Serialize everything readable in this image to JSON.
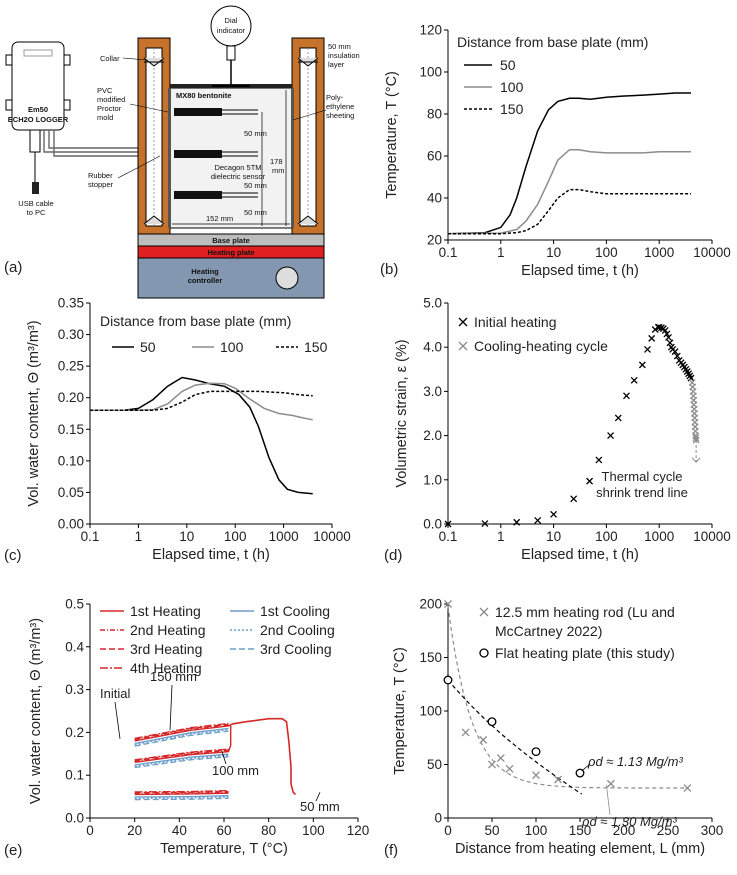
{
  "apparatus": {
    "panel_label": "(a)",
    "logger_title": "Em50",
    "logger_subtitle": "ECH2O LOGGER",
    "usb_label_1": "USB cable",
    "usb_label_2": "to PC",
    "collar": "Collar",
    "mold_1": "PVC",
    "mold_2": "modified",
    "mold_3": "Proctor",
    "mold_4": "mold",
    "stopper_1": "Rubber",
    "stopper_2": "stopper",
    "dial_1": "Dial",
    "dial_2": "indicator",
    "insul_1": "50 mm",
    "insul_2": "insulation",
    "insul_3": "layer",
    "bentonite": "MX80 bentonite",
    "sheet_1": "Poly-",
    "sheet_2": "ethylene",
    "sheet_3": "sheeting",
    "dim_50a": "50 mm",
    "dim_50b": "50 mm",
    "dim_50c": "50 mm",
    "dim_178a": "178",
    "dim_178b": "mm",
    "sensor_1": "Decagon 5TM",
    "sensor_2": "dielectric sensor",
    "dim_152": "152 mm",
    "base_plate": "Base plate",
    "heating_plate": "Heating plate",
    "controller": "Heating",
    "controller_2": "controller"
  },
  "chart_data": [
    {
      "id": "b",
      "panel_label": "(b)",
      "type": "line",
      "xlabel": "Elapsed time, t (h)",
      "ylabel": "Temperature, T (°C)",
      "xscale": "log",
      "xlim": [
        0.1,
        10000
      ],
      "ylim": [
        20,
        120
      ],
      "xticks": [
        "0.1",
        "1",
        "10",
        "100",
        "1000",
        "10000"
      ],
      "yticks": [
        "20",
        "40",
        "60",
        "80",
        "100",
        "120"
      ],
      "legend_title": "Distance from base plate (mm)",
      "series": [
        {
          "name": "50",
          "color": "#000000",
          "dash": "",
          "x": [
            0.1,
            0.5,
            1,
            1.5,
            2,
            3,
            5,
            8,
            12,
            20,
            30,
            50,
            100,
            200,
            500,
            1000,
            2000,
            4000
          ],
          "y": [
            23,
            23.5,
            26,
            32,
            40,
            55,
            72,
            82,
            86,
            87.5,
            87.5,
            87,
            88,
            88.5,
            89,
            89.5,
            90,
            90
          ]
        },
        {
          "name": "100",
          "color": "#8c8c8c",
          "dash": "",
          "x": [
            0.1,
            1,
            2,
            3,
            5,
            8,
            12,
            20,
            30,
            50,
            100,
            200,
            500,
            1000,
            2000,
            4000
          ],
          "y": [
            23,
            23.3,
            25,
            29,
            37,
            48,
            58,
            63,
            63,
            62,
            61.5,
            61.5,
            61.5,
            62,
            62,
            62
          ]
        },
        {
          "name": "150",
          "color": "#000000",
          "dash": "3,2",
          "x": [
            0.1,
            1,
            2,
            3,
            5,
            8,
            12,
            20,
            30,
            50,
            100,
            200,
            500,
            1000,
            2000,
            4000
          ],
          "y": [
            23,
            23,
            23.5,
            24.5,
            27.5,
            34,
            40,
            44,
            44,
            43,
            42,
            42,
            42,
            42,
            42,
            42
          ]
        }
      ]
    },
    {
      "id": "c",
      "panel_label": "(c)",
      "type": "line",
      "xlabel": "Elapsed time, t (h)",
      "ylabel": "Vol. water content, Θ (m³/m³)",
      "xscale": "log",
      "xlim": [
        0.1,
        10000
      ],
      "ylim": [
        0,
        0.35
      ],
      "xticks": [
        "0.1",
        "1",
        "10",
        "100",
        "1000",
        "10000"
      ],
      "yticks": [
        "0.00",
        "0.05",
        "0.10",
        "0.15",
        "0.20",
        "0.25",
        "0.30",
        "0.35"
      ],
      "legend_title": "Distance from base plate (mm)",
      "series": [
        {
          "name": "50",
          "color": "#000000",
          "dash": "",
          "x": [
            0.1,
            0.5,
            1,
            2,
            4,
            8,
            15,
            30,
            60,
            120,
            200,
            300,
            500,
            800,
            1200,
            2000,
            4000
          ],
          "y": [
            0.18,
            0.18,
            0.183,
            0.197,
            0.218,
            0.232,
            0.228,
            0.222,
            0.218,
            0.205,
            0.185,
            0.155,
            0.105,
            0.07,
            0.055,
            0.05,
            0.048
          ]
        },
        {
          "name": "100",
          "color": "#8c8c8c",
          "dash": "",
          "x": [
            0.1,
            1,
            2,
            4,
            8,
            15,
            30,
            60,
            100,
            200,
            400,
            800,
            1500,
            2500,
            4000
          ],
          "y": [
            0.18,
            0.18,
            0.181,
            0.19,
            0.21,
            0.22,
            0.223,
            0.222,
            0.215,
            0.198,
            0.183,
            0.175,
            0.172,
            0.168,
            0.165
          ]
        },
        {
          "name": "150",
          "color": "#000000",
          "dash": "3,2",
          "x": [
            0.1,
            1,
            2,
            4,
            8,
            15,
            30,
            100,
            300,
            1000,
            2000,
            4000
          ],
          "y": [
            0.18,
            0.18,
            0.18,
            0.183,
            0.193,
            0.205,
            0.21,
            0.21,
            0.21,
            0.208,
            0.205,
            0.203
          ]
        }
      ]
    },
    {
      "id": "d",
      "panel_label": "(d)",
      "type": "scatter",
      "xlabel": "Elapsed time, t (h)",
      "ylabel": "Volumetric strain, ε (%)",
      "xscale": "log",
      "xlim": [
        0.1,
        10000
      ],
      "ylim": [
        0,
        5
      ],
      "xticks": [
        "0.1",
        "1",
        "10",
        "100",
        "1000",
        "10000"
      ],
      "yticks": [
        "0.0",
        "1.0",
        "2.0",
        "3.0",
        "4.0",
        "5.0"
      ],
      "annotation_1": "Thermal cycle",
      "annotation_2": "shrink trend line",
      "series": [
        {
          "name": "Initial heating",
          "color": "#000000",
          "x": [
            0.1,
            0.5,
            2,
            5,
            10,
            24,
            48,
            72,
            120,
            168,
            240,
            336,
            480,
            600,
            720,
            840,
            960,
            1000,
            1100,
            1200,
            1300,
            1400,
            1500,
            1600,
            1700,
            1800,
            2000,
            2200,
            2400,
            2600,
            2800,
            3000,
            3200,
            3400,
            3600,
            3800,
            4000
          ],
          "y": [
            0,
            0.01,
            0.04,
            0.08,
            0.22,
            0.57,
            0.97,
            1.45,
            2.0,
            2.4,
            2.9,
            3.25,
            3.6,
            3.95,
            4.2,
            4.4,
            4.45,
            4.45,
            4.44,
            4.42,
            4.38,
            4.3,
            4.22,
            4.1,
            4.0,
            3.95,
            3.9,
            3.8,
            3.7,
            3.65,
            3.6,
            3.55,
            3.5,
            3.45,
            3.4,
            3.35,
            3.3
          ]
        },
        {
          "name": "Cooling-heating cycle",
          "color": "#8c8c8c",
          "x": [
            4200,
            4300,
            4400,
            4450,
            4500,
            4550,
            4600,
            4650,
            4700,
            4750,
            4800,
            4850,
            4900,
            4950,
            5000
          ],
          "y": [
            3.2,
            3.1,
            3.0,
            2.9,
            2.8,
            2.7,
            2.6,
            2.5,
            2.4,
            2.3,
            2.2,
            2.1,
            2.0,
            1.95,
            1.9
          ]
        }
      ]
    },
    {
      "id": "e",
      "panel_label": "(e)",
      "type": "line",
      "xlabel": "Temperature, T (°C)",
      "ylabel": "Vol. water content, Θ (m³/m³)",
      "xscale": "linear",
      "xlim": [
        0,
        120
      ],
      "ylim": [
        0,
        0.5
      ],
      "xticks": [
        "0",
        "20",
        "40",
        "60",
        "80",
        "100",
        "120"
      ],
      "yticks": [
        "0.0",
        "0.1",
        "0.2",
        "0.3",
        "0.4",
        "0.5"
      ],
      "annotations": [
        "Initial",
        "150 mm",
        "100 mm",
        "50 mm"
      ],
      "series": [
        {
          "name": "1st Heating",
          "color": "#d62728",
          "dash": ""
        },
        {
          "name": "2nd Heating",
          "color": "#d62728",
          "dash": "5,2,1,2"
        },
        {
          "name": "3rd Heating",
          "color": "#d62728",
          "dash": "6,3"
        },
        {
          "name": "4th Heating",
          "color": "#d62728",
          "dash": "8,2,2,2"
        },
        {
          "name": "1st Cooling",
          "color": "#6a9ecb",
          "dash": ""
        },
        {
          "name": "2nd Cooling",
          "color": "#6a9ecb",
          "dash": "2,2"
        },
        {
          "name": "3rd Cooling",
          "color": "#6a9ecb",
          "dash": "6,3"
        }
      ]
    },
    {
      "id": "f",
      "panel_label": "(f)",
      "type": "scatter",
      "xlabel": "Distance from heating element, L (mm)",
      "ylabel": "Temperature, T (°C)",
      "xscale": "linear",
      "xlim": [
        0,
        300
      ],
      "ylim": [
        0,
        200
      ],
      "xticks": [
        "0",
        "50",
        "100",
        "150",
        "200",
        "250",
        "300"
      ],
      "yticks": [
        "0",
        "50",
        "100",
        "150",
        "200"
      ],
      "legend_1a": "12.5 mm heating rod (Lu and",
      "legend_1b": "McCartney 2022)",
      "legend_2": "Flat heating plate (this study)",
      "density_1": "ρd ≈ 1.13 Mg/m³",
      "density_2": "ρd ≈ 1.30 Mg/m³",
      "series": [
        {
          "name": "12.5 mm heating rod (Lu and McCartney 2022)",
          "color": "#8c8c8c",
          "marker": "x",
          "x": [
            0,
            20,
            40,
            50,
            60,
            70,
            100,
            125,
            185,
            272
          ],
          "y": [
            200,
            80,
            73,
            50,
            56,
            46,
            40,
            36,
            32,
            28
          ]
        },
        {
          "name": "Flat heating plate (this study)",
          "color": "#000000",
          "marker": "o",
          "x": [
            0,
            50,
            100,
            150
          ],
          "y": [
            129,
            90,
            62,
            42
          ]
        }
      ]
    }
  ]
}
